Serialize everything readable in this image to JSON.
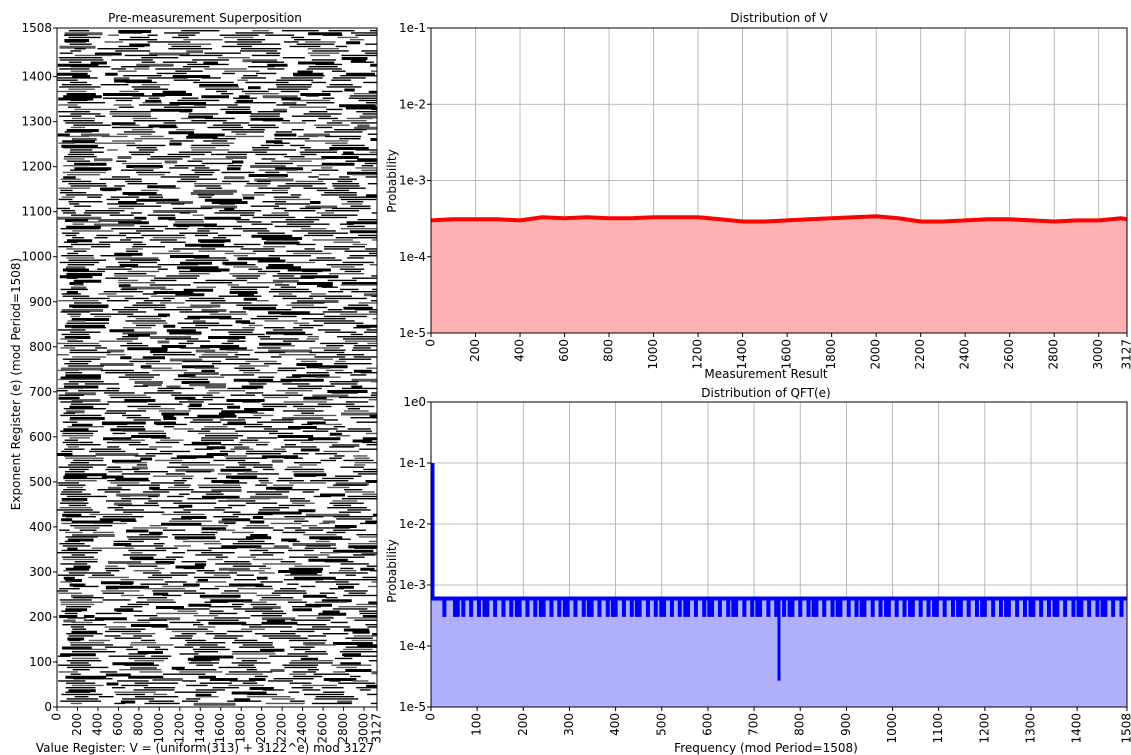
{
  "chart_data": [
    {
      "type": "heatmap",
      "title": "Pre-measurement Superposition",
      "xlabel": "Value Register: V = (uniform(313) + 3122^e) mod 3127",
      "ylabel": "Exponent Register (e) (mod Period=1508)",
      "xlim": [
        0,
        3127
      ],
      "ylim": [
        0,
        1508
      ],
      "x_ticks": [
        "0",
        "200",
        "400",
        "600",
        "800",
        "1000",
        "1200",
        "1400",
        "1600",
        "1800",
        "2000",
        "2200",
        "2400",
        "2600",
        "2800",
        "3000",
        "3127"
      ],
      "y_ticks": [
        "0",
        "100",
        "200",
        "300",
        "400",
        "500",
        "600",
        "700",
        "800",
        "900",
        "1000",
        "1100",
        "1200",
        "1300",
        "1400",
        "1508"
      ],
      "fill_color": "#000000"
    },
    {
      "type": "area",
      "title": "Distribution of V",
      "xlabel": "Measurement Result",
      "ylabel": "Probability",
      "y_scale": "log",
      "xlim": [
        0,
        3127
      ],
      "ylim": [
        1e-05,
        0.1
      ],
      "x_ticks": [
        "0",
        "200",
        "400",
        "600",
        "800",
        "1000",
        "1200",
        "1400",
        "1600",
        "1800",
        "2000",
        "2200",
        "2400",
        "2600",
        "2800",
        "3000",
        "3127"
      ],
      "y_ticks": [
        "1e-5",
        "1e-4",
        "1e-3",
        "1e-2",
        "1e-1"
      ],
      "line_color": "#ff0000",
      "fill_color": "#ffb0b0",
      "x": [
        0,
        100,
        200,
        300,
        400,
        500,
        600,
        700,
        800,
        900,
        1000,
        1100,
        1200,
        1300,
        1400,
        1500,
        1600,
        1700,
        1800,
        1900,
        2000,
        2100,
        2200,
        2300,
        2400,
        2500,
        2600,
        2700,
        2800,
        2900,
        3000,
        3100,
        3127
      ],
      "y": [
        0.0003,
        0.00031,
        0.00031,
        0.00031,
        0.0003,
        0.00033,
        0.00032,
        0.00033,
        0.00032,
        0.00032,
        0.00033,
        0.00033,
        0.00033,
        0.00031,
        0.00029,
        0.00029,
        0.0003,
        0.00031,
        0.00032,
        0.00033,
        0.00034,
        0.00032,
        0.00029,
        0.00029,
        0.0003,
        0.00031,
        0.00031,
        0.0003,
        0.00029,
        0.0003,
        0.0003,
        0.00032,
        0.00031
      ]
    },
    {
      "type": "area",
      "title": "Distribution of QFT(e)",
      "xlabel": "Frequency (mod Period=1508)",
      "ylabel": "Probability",
      "y_scale": "log",
      "xlim": [
        0,
        1508
      ],
      "ylim": [
        1e-05,
        1
      ],
      "x_ticks": [
        "0",
        "100",
        "200",
        "300",
        "400",
        "500",
        "600",
        "700",
        "800",
        "900",
        "1000",
        "1100",
        "1200",
        "1300",
        "1400",
        "1508"
      ],
      "y_ticks": [
        "1e-5",
        "1e-4",
        "1e-3",
        "1e-2",
        "1e-1",
        "1e0"
      ],
      "line_color": "#0000ff",
      "fill_color": "#b0b0ff",
      "baseline": 0.0006,
      "dip_value": 0.0003,
      "peaks": [
        {
          "x": 0,
          "y": 0.1
        },
        {
          "x": 754,
          "y": 2.7e-05
        }
      ],
      "dips_x": [
        29,
        52,
        58,
        70,
        87,
        104,
        116,
        122,
        139,
        157,
        174,
        186,
        192,
        209,
        226,
        238,
        244,
        261,
        278,
        290,
        296,
        313,
        331,
        342,
        348,
        365,
        383,
        394,
        400,
        418,
        435,
        446,
        452,
        470,
        487,
        499,
        505,
        522,
        539,
        551,
        557,
        574,
        592,
        603,
        609,
        626,
        644,
        655,
        661,
        679,
        696,
        707,
        713,
        731,
        748,
        765,
        777,
        783,
        800,
        818,
        829,
        835,
        852,
        870,
        881,
        887,
        905,
        922,
        933,
        939,
        957,
        974,
        986,
        992,
        1009,
        1026,
        1038,
        1044,
        1061,
        1078,
        1090,
        1096,
        1113,
        1131,
        1142,
        1148,
        1165,
        1183,
        1194,
        1200,
        1218,
        1235,
        1246,
        1252,
        1270,
        1287,
        1299,
        1305,
        1322,
        1339,
        1351,
        1357,
        1374,
        1392,
        1403,
        1409,
        1426,
        1444,
        1455,
        1461,
        1478,
        1496
      ]
    }
  ]
}
